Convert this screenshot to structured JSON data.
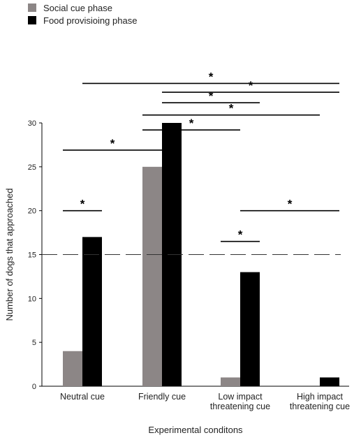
{
  "chart_data": {
    "type": "bar",
    "categories": [
      "Neutral cue",
      "Friendly cue",
      "Low impact\nthreatening cue",
      "High impact\nthreatening cue"
    ],
    "series": [
      {
        "name": "Social cue phase",
        "values": [
          4,
          25,
          1,
          0
        ],
        "color": "#8c8686"
      },
      {
        "name": "Food provisioing phase",
        "values": [
          17,
          30,
          13,
          1
        ],
        "color": "#000000"
      }
    ],
    "xlabel": "Experimental conditons",
    "ylabel": "Number of dogs that approached",
    "ylim": [
      0,
      30
    ],
    "yticks": [
      0,
      5,
      10,
      15,
      20,
      25,
      30
    ],
    "reference_line": 15,
    "grid": false,
    "legend_position": "top-left",
    "significance_marks": [
      {
        "from": "Food provisioing phase|Neutral cue",
        "to": "Food provisioing phase|High impact\nthreatening cue",
        "y": 34.5,
        "label": "*"
      },
      {
        "from": "Food provisioing phase|Friendly cue",
        "to": "Food provisioing phase|High impact\nthreatening cue",
        "y": 33.5,
        "label": "*"
      },
      {
        "from": "Food provisioing phase|Friendly cue",
        "to": "Food provisioing phase|Low impact\nthreatening cue",
        "y": 34.5,
        "label": "*",
        "fixed_y": 32.3
      },
      {
        "from": "Social cue phase|Friendly cue",
        "to": "Social cue phase|High impact\nthreatening cue",
        "y": 32.5,
        "label": "*",
        "fixed_y": 30.9
      },
      {
        "from": "Social cue phase|Friendly cue",
        "to": "Social cue phase|Low impact\nthreatening cue",
        "y": 31,
        "label": "*",
        "fixed_y": 29.2
      },
      {
        "from": "Social cue phase|Neutral cue",
        "to": "Social cue phase|Friendly cue",
        "y": 26.9,
        "label": "*"
      },
      {
        "from": "Social cue phase|Neutral cue",
        "to": "Food provisioing phase|Neutral cue",
        "y": 20,
        "label": "*"
      },
      {
        "from": "Social cue phase|Low impact\nthreatening cue",
        "to": "Food provisioing phase|Low impact\nthreatening cue",
        "y": 16.5,
        "label": "*"
      },
      {
        "from": "Food provisioing phase|Low impact\nthreatening cue",
        "to": "Food provisioing phase|High impact\nthreatening cue",
        "y": 20,
        "label": "*"
      }
    ]
  }
}
